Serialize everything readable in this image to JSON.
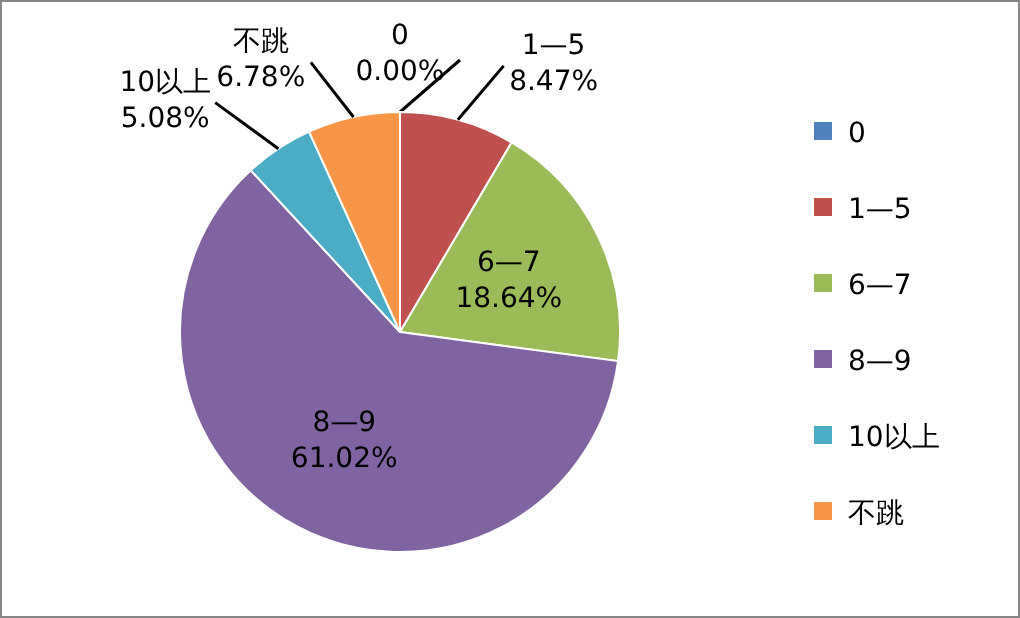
{
  "chart_data": {
    "type": "pie",
    "categories": [
      "0",
      "1—5",
      "6—7",
      "8—9",
      "10以上",
      "不跳"
    ],
    "values": [
      0,
      8.47,
      18.64,
      61.02,
      5.08,
      6.78
    ],
    "value_labels": [
      "0.00%",
      "8.47%",
      "18.64%",
      "61.02%",
      "5.08%",
      "6.78%"
    ],
    "colors": [
      "#4f81bd",
      "#c0504d",
      "#9bbb59",
      "#8064a2",
      "#4bacc6",
      "#f79646"
    ],
    "legend": "right"
  }
}
